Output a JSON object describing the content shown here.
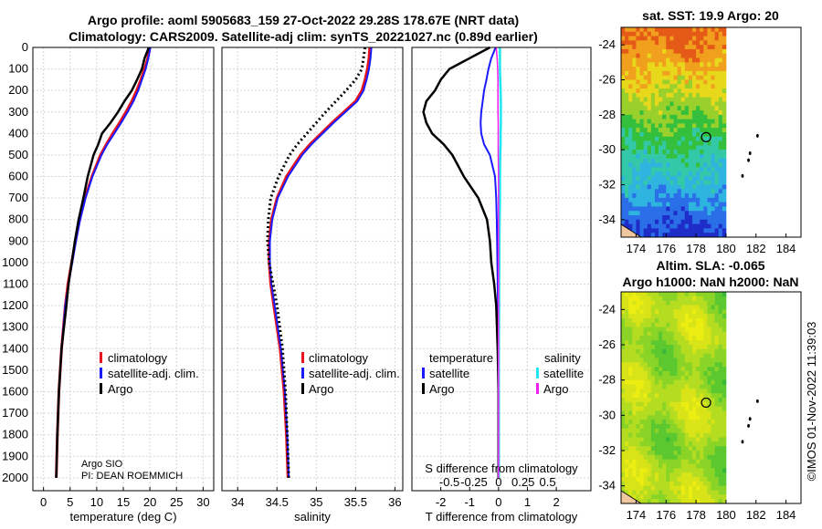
{
  "header": {
    "title_line1": "Argo profile: aoml 5905683_159 27-Oct-2022 29.28S 178.67E (NRT data)",
    "title_line2": "Climatology: CARS2009. Satellite-adj clim: synTS_20221027.nc (0.89d earlier)"
  },
  "credits": {
    "line1": "Argo SIO",
    "line2": "PI: DEAN ROEMMICH"
  },
  "timestamp": "©IMOS 01-Nov-2022 11:39:03",
  "colors": {
    "climatology": "#e8141c",
    "satellite": "#1a1aff",
    "argo": "#000000",
    "sat_salinity": "#1ee6f0",
    "argo_salinity": "#f01ef0"
  },
  "legend_profile": {
    "climatology": "climatology",
    "satellite": "satellite-adj. clim.",
    "argo": "Argo"
  },
  "legend_diff": {
    "temp_head": "temperature",
    "sal_head": "salinity",
    "satellite": "satellite",
    "argo": "Argo"
  },
  "chart_data": [
    {
      "type": "line",
      "id": "temperature",
      "xlabel": "temperature (deg C)",
      "ylabel": "",
      "xlim": [
        -2,
        32
      ],
      "ylim": [
        2060,
        0
      ],
      "xticks": [
        "0",
        "5",
        "10",
        "15",
        "20",
        "25",
        "30"
      ],
      "yticks": [
        "0",
        "100",
        "200",
        "300",
        "400",
        "500",
        "600",
        "700",
        "800",
        "900",
        "1000",
        "1100",
        "1200",
        "1300",
        "1400",
        "1500",
        "1600",
        "1700",
        "1800",
        "1900",
        "2000"
      ],
      "depth": [
        0,
        50,
        100,
        150,
        200,
        250,
        300,
        350,
        400,
        450,
        500,
        600,
        700,
        800,
        900,
        1000,
        1100,
        1200,
        1400,
        1600,
        1800,
        2000
      ],
      "series": [
        {
          "name": "climatology",
          "values": [
            20.0,
            19.6,
            19.0,
            18.3,
            17.5,
            16.6,
            15.5,
            14.3,
            13.0,
            11.8,
            10.7,
            9.1,
            7.8,
            6.8,
            6.0,
            5.3,
            4.6,
            4.1,
            3.4,
            2.9,
            2.6,
            2.4
          ]
        },
        {
          "name": "satellite-adj. clim.",
          "values": [
            20.1,
            19.7,
            19.2,
            18.5,
            17.8,
            16.9,
            15.8,
            14.6,
            13.3,
            12.0,
            10.9,
            9.2,
            7.9,
            6.9,
            6.1,
            5.4,
            4.7,
            4.1,
            3.4,
            2.9,
            2.6,
            2.4
          ]
        },
        {
          "name": "Argo",
          "values": [
            19.8,
            19.0,
            18.5,
            17.6,
            16.6,
            15.2,
            14.0,
            12.6,
            11.0,
            10.3,
            9.4,
            8.3,
            7.5,
            6.6,
            5.9,
            5.3,
            4.7,
            4.3,
            3.4,
            2.9,
            2.6,
            2.4
          ]
        }
      ]
    },
    {
      "type": "line",
      "id": "salinity",
      "xlabel": "salinity",
      "xlim": [
        33.8,
        36.1
      ],
      "ylim": [
        2060,
        0
      ],
      "xticks": [
        "34",
        "34.5",
        "35",
        "35.5",
        "36"
      ],
      "depth": [
        0,
        50,
        100,
        150,
        200,
        250,
        300,
        350,
        400,
        450,
        500,
        600,
        700,
        800,
        900,
        1000,
        1100,
        1200,
        1400,
        1600,
        1800,
        2000
      ],
      "series": [
        {
          "name": "climatology",
          "values": [
            35.68,
            35.67,
            35.65,
            35.62,
            35.58,
            35.5,
            35.35,
            35.2,
            35.06,
            34.92,
            34.8,
            34.62,
            34.5,
            34.43,
            34.4,
            34.4,
            34.42,
            34.46,
            34.54,
            34.59,
            34.62,
            34.64
          ]
        },
        {
          "name": "satellite-adj. clim.",
          "values": [
            35.7,
            35.69,
            35.67,
            35.64,
            35.6,
            35.52,
            35.37,
            35.22,
            35.08,
            34.94,
            34.82,
            34.64,
            34.51,
            34.44,
            34.41,
            34.41,
            34.43,
            34.47,
            34.55,
            34.6,
            34.63,
            34.65
          ]
        },
        {
          "name": "Argo",
          "values": [
            35.62,
            35.6,
            35.58,
            35.5,
            35.38,
            35.25,
            35.12,
            35.0,
            34.88,
            34.76,
            34.66,
            34.52,
            34.42,
            34.39,
            34.38,
            34.4,
            34.45,
            34.5,
            34.57,
            34.61,
            34.63,
            34.65
          ]
        }
      ]
    },
    {
      "type": "line",
      "id": "difference",
      "xlabel": "T difference from climatology",
      "xlabel_top": "S difference from climatology",
      "xlim": [
        -3,
        3.2
      ],
      "ylim": [
        2060,
        0
      ],
      "xticks": [
        "-2",
        "-1",
        "0",
        "1",
        "2"
      ],
      "xticks_salinity": [
        "-0.5",
        "-0.25",
        "0",
        "0.25",
        "0.5"
      ],
      "depth": [
        0,
        50,
        100,
        150,
        200,
        250,
        300,
        350,
        400,
        450,
        500,
        600,
        700,
        800,
        900,
        1000,
        1100,
        1200,
        1400,
        1600,
        1800,
        2000
      ],
      "series": [
        {
          "name": "temperature satellite",
          "values": [
            -0.1,
            -0.25,
            -0.35,
            -0.42,
            -0.5,
            -0.55,
            -0.6,
            -0.62,
            -0.6,
            -0.5,
            -0.3,
            -0.12,
            -0.08,
            -0.06,
            -0.05,
            -0.04,
            -0.03,
            -0.02,
            -0.01,
            0.0,
            0.0,
            0.0
          ]
        },
        {
          "name": "temperature Argo",
          "values": [
            -0.3,
            -1.0,
            -1.7,
            -2.0,
            -2.2,
            -2.5,
            -2.6,
            -2.5,
            -2.3,
            -1.9,
            -1.6,
            -1.2,
            -0.7,
            -0.4,
            -0.3,
            -0.25,
            -0.15,
            -0.08,
            -0.03,
            0.0,
            0.0,
            0.0
          ]
        },
        {
          "name": "salinity satellite",
          "values": [
            0.05,
            0.05,
            0.05,
            0.06,
            0.07,
            0.08,
            0.08,
            0.08,
            0.07,
            0.07,
            0.06,
            0.05,
            0.05,
            0.04,
            0.03,
            0.03,
            0.02,
            0.02,
            0.01,
            0.01,
            0.01,
            0.01
          ]
        },
        {
          "name": "salinity Argo",
          "values": [
            -0.08,
            -0.05,
            -0.03,
            -0.02,
            -0.02,
            -0.02,
            -0.02,
            -0.01,
            -0.01,
            -0.01,
            -0.01,
            0.0,
            0.0,
            0.0,
            0.0,
            0.0,
            0.0,
            0.0,
            0.0,
            0.0,
            0.0,
            0.0
          ]
        }
      ]
    },
    {
      "type": "heatmap",
      "id": "sst_map",
      "title": "sat. SST: 19.9  Argo: 20",
      "xlim": [
        173,
        185
      ],
      "ylim": [
        -35,
        -23
      ],
      "xticks": [
        "174",
        "176",
        "178",
        "180",
        "182",
        "184"
      ],
      "yticks": [
        "-24",
        "-26",
        "-28",
        "-30",
        "-32",
        "-34"
      ],
      "profile_lon": 178.67,
      "profile_lat": -29.28,
      "palette": [
        "#1f2dc8",
        "#2a6ee8",
        "#2fb4e0",
        "#33c8a8",
        "#34c03c",
        "#9ad02c",
        "#e8d81c",
        "#f0a01c",
        "#e65a18"
      ]
    },
    {
      "type": "heatmap",
      "id": "sla_map",
      "title": "Altim. SLA: -0.065",
      "title2": "Argo h1000: NaN h2000: NaN",
      "xlim": [
        173,
        185
      ],
      "ylim": [
        -35,
        -23
      ],
      "xticks": [
        "174",
        "176",
        "178",
        "180",
        "182",
        "184"
      ],
      "yticks": [
        "-24",
        "-26",
        "-28",
        "-30",
        "-32",
        "-34"
      ],
      "profile_lon": 178.67,
      "profile_lat": -29.28,
      "palette": [
        "#38b838",
        "#5cc830",
        "#8ad428",
        "#b4dc20",
        "#d8e418",
        "#eced10"
      ]
    }
  ]
}
